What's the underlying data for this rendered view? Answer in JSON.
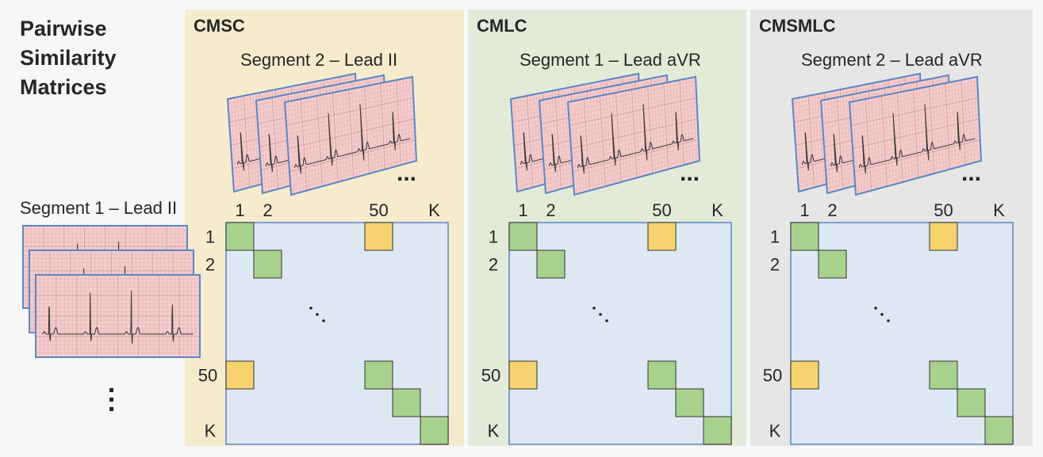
{
  "title_lines": [
    "Pairwise",
    "Similarity",
    "Matrices"
  ],
  "left_segment_label": "Segment 1 – Lead II",
  "panels": [
    {
      "name": "CMSC",
      "segment_label": "Segment 2 – Lead II",
      "color": "#f6ebcd"
    },
    {
      "name": "CMLC",
      "segment_label": "Segment 1 – Lead aVR",
      "color": "#e2ebd8"
    },
    {
      "name": "CMSMLC",
      "segment_label": "Segment 2 – Lead aVR",
      "color": "#e6e6e6"
    }
  ],
  "matrix": {
    "col_labels": [
      "1",
      "2",
      "50",
      "K"
    ],
    "row_labels": [
      "1",
      "2",
      "50",
      "K"
    ],
    "diagonal_color": "#a9d18e",
    "cross_color": "#f6d36e",
    "background_color": "#dee8f2",
    "border_color": "#5b86c6"
  },
  "ellipsis": "..."
}
